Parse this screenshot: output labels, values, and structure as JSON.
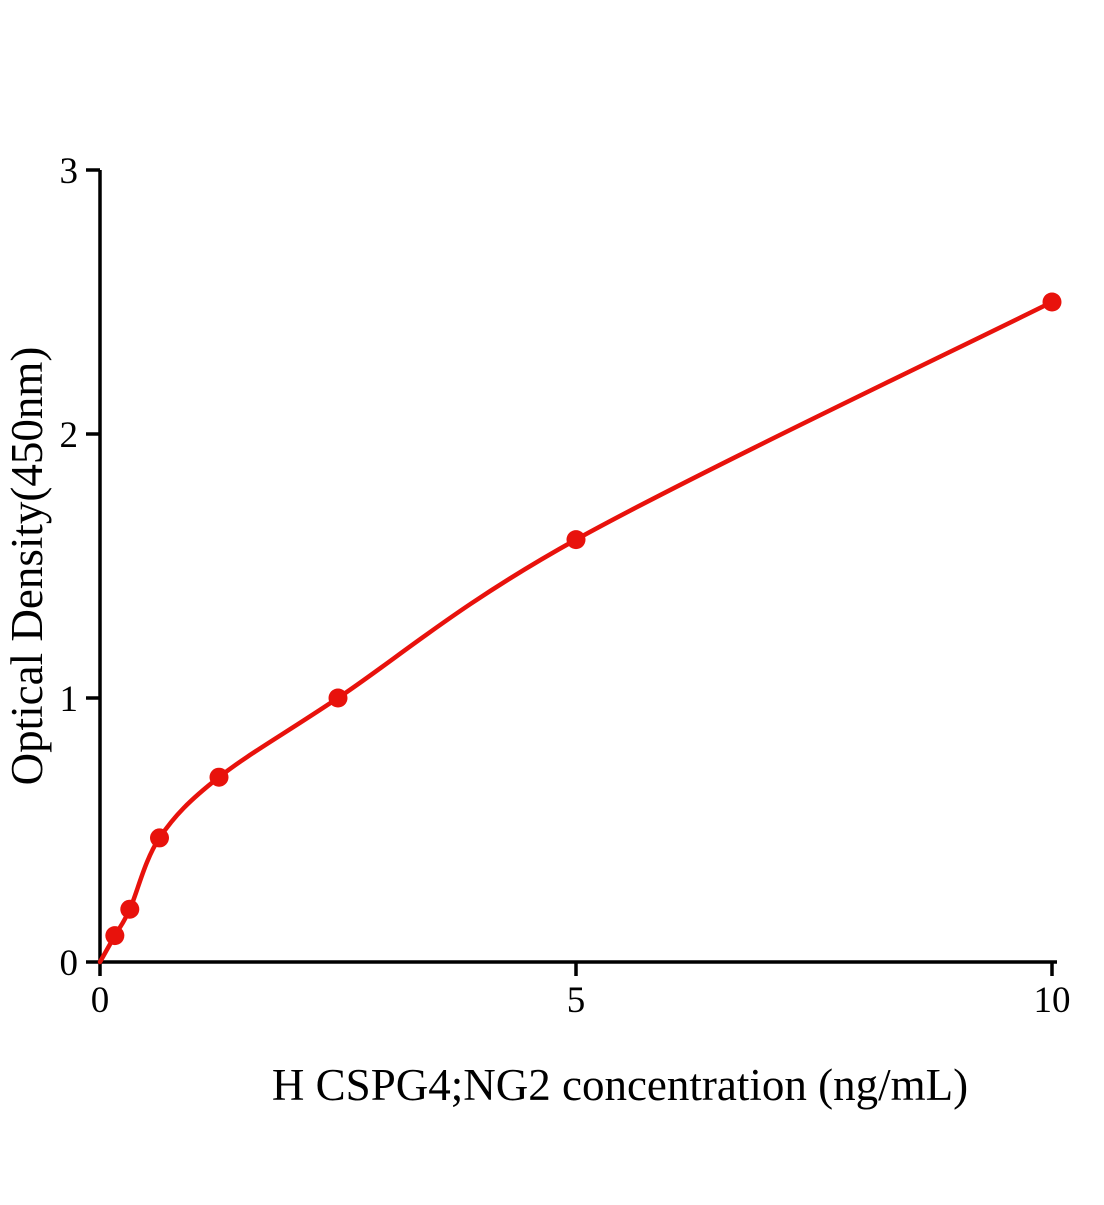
{
  "chart_data": {
    "type": "scatter",
    "title": "",
    "x": [
      0.156,
      0.313,
      0.625,
      1.25,
      2.5,
      5,
      10
    ],
    "y": [
      0.1,
      0.2,
      0.47,
      0.7,
      1.0,
      1.6,
      2.5
    ],
    "xlabel": "H CSPG4;NG2 concentration (ng/mL)",
    "ylabel": "Optical Density(450nm)",
    "xlim": [
      0,
      10
    ],
    "ylim": [
      0,
      3
    ],
    "xticks": [
      "0",
      "5",
      "10"
    ],
    "yticks": [
      "0",
      "1",
      "2",
      "3"
    ],
    "grid": false,
    "legend": null,
    "marker_color": "#e8120c",
    "line_color": "#e8120c",
    "axis_color": "#000000",
    "curve_fit": "smooth-curve-through-origin-and-points"
  }
}
